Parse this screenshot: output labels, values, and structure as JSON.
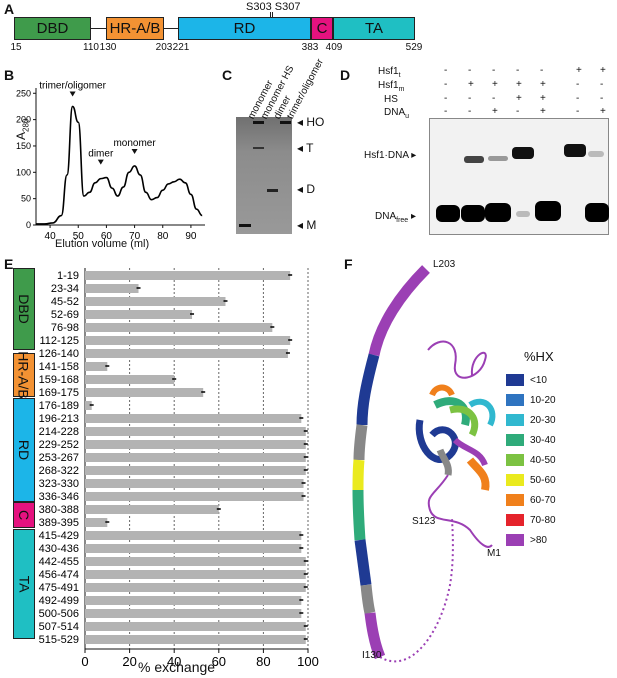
{
  "panels": {
    "A": "A",
    "B": "B",
    "C": "C",
    "D": "D",
    "E": "E",
    "F": "F"
  },
  "panelA": {
    "phospho_sites": "S303 S307",
    "domains": [
      {
        "name": "DBD",
        "color": "#3f9b4b"
      },
      {
        "name": "HR-A/B",
        "color": "#f39233"
      },
      {
        "name": "RD",
        "color": "#1cb5e8"
      },
      {
        "name": "C",
        "color": "#e5127f"
      },
      {
        "name": "TA",
        "color": "#1fbfc3"
      }
    ],
    "positions": [
      "15",
      "110",
      "130",
      "203",
      "221",
      "383",
      "409",
      "529"
    ]
  },
  "panelB": {
    "ylabel": "A",
    "ylabel_sub": "280",
    "xlabel": "Elution volume (ml)",
    "xticks": [
      "40",
      "50",
      "60",
      "70",
      "80",
      "90"
    ],
    "yticks": [
      "0",
      "50",
      "100",
      "150",
      "200",
      "250"
    ],
    "annotations": {
      "trimer": "trimer/oligomer",
      "dimer": "dimer",
      "monomer": "monomer"
    }
  },
  "panelC": {
    "lanes": [
      "monomer",
      "monomer HS",
      "dimer",
      "trimer/oligomer"
    ],
    "markers": [
      "HO",
      "T",
      "D",
      "M"
    ]
  },
  "panelD": {
    "rows": [
      {
        "label": "Hsf1",
        "sub": "t",
        "values": [
          "-",
          "-",
          "-",
          "-",
          "-",
          "+",
          "+"
        ]
      },
      {
        "label": "Hsf1",
        "sub": "m",
        "values": [
          "-",
          "+",
          "+",
          "+",
          "+",
          "-",
          "-"
        ]
      },
      {
        "label": "HS",
        "sub": "",
        "values": [
          "-",
          "-",
          "-",
          "+",
          "+",
          "-",
          "-"
        ]
      },
      {
        "label": "DNA",
        "sub": "u",
        "values": [
          "-",
          "-",
          "+",
          "-",
          "+",
          "-",
          "+"
        ]
      }
    ],
    "complex_label": "Hsf1·DNA",
    "free_label": "DNA",
    "free_sub": "free"
  },
  "panelE": {
    "xlabel": "% exchange",
    "xticks": [
      "0",
      "20",
      "40",
      "60",
      "80",
      "100"
    ],
    "groups": [
      {
        "name": "DBD",
        "color": "#3f9b4b"
      },
      {
        "name": "HR-A/B",
        "color": "#f39233"
      },
      {
        "name": "RD",
        "color": "#1cb5e8"
      },
      {
        "name": "C",
        "color": "#e5127f"
      },
      {
        "name": "TA",
        "color": "#1fbfc3"
      }
    ],
    "peptides": [
      {
        "label": "1-19",
        "value": 92
      },
      {
        "label": "23-34",
        "value": 24
      },
      {
        "label": "45-52",
        "value": 63
      },
      {
        "label": "52-69",
        "value": 48
      },
      {
        "label": "76-98",
        "value": 84
      },
      {
        "label": "112-125",
        "value": 92
      },
      {
        "label": "126-140",
        "value": 91
      },
      {
        "label": "141-158",
        "value": 10
      },
      {
        "label": "159-168",
        "value": 40
      },
      {
        "label": "169-175",
        "value": 53
      },
      {
        "label": "176-189",
        "value": 3
      },
      {
        "label": "196-213",
        "value": 97
      },
      {
        "label": "214-228",
        "value": 99
      },
      {
        "label": "229-252",
        "value": 99
      },
      {
        "label": "253-267",
        "value": 99
      },
      {
        "label": "268-322",
        "value": 99
      },
      {
        "label": "323-330",
        "value": 98
      },
      {
        "label": "336-346",
        "value": 98
      },
      {
        "label": "380-388",
        "value": 60
      },
      {
        "label": "389-395",
        "value": 10
      },
      {
        "label": "415-429",
        "value": 97
      },
      {
        "label": "430-436",
        "value": 97
      },
      {
        "label": "442-455",
        "value": 99
      },
      {
        "label": "456-474",
        "value": 99
      },
      {
        "label": "475-491",
        "value": 99
      },
      {
        "label": "492-499",
        "value": 97
      },
      {
        "label": "500-506",
        "value": 97
      },
      {
        "label": "507-514",
        "value": 99
      },
      {
        "label": "515-529",
        "value": 99
      }
    ]
  },
  "panelF": {
    "labels": {
      "L203": "L203",
      "S123": "S123",
      "M1": "M1",
      "I130": "I130"
    },
    "legend_title": "%HX",
    "legend": [
      {
        "label": "<10",
        "color": "#1f3a93"
      },
      {
        "label": "10-20",
        "color": "#2f74c0"
      },
      {
        "label": "20-30",
        "color": "#31b8cf"
      },
      {
        "label": "30-40",
        "color": "#2fab7a"
      },
      {
        "label": "40-50",
        "color": "#7cc242"
      },
      {
        "label": "50-60",
        "color": "#eaea1e"
      },
      {
        "label": "60-70",
        "color": "#f0801c"
      },
      {
        "label": "70-80",
        "color": "#e5232b"
      },
      {
        "label": ">80",
        "color": "#9b3fb4"
      }
    ]
  },
  "chart_data": [
    {
      "type": "line",
      "title": "",
      "xlabel": "Elution volume (ml)",
      "ylabel": "A280",
      "xlim": [
        35,
        95
      ],
      "ylim": [
        0,
        260
      ],
      "series": [
        {
          "x": [
            35,
            38,
            41,
            44,
            46,
            48,
            50,
            52,
            54,
            56,
            58,
            60,
            62,
            64,
            66,
            68,
            70,
            72,
            74,
            76,
            78,
            80,
            82,
            84,
            86,
            88,
            90,
            92,
            94
          ],
          "y": [
            2,
            2,
            4,
            18,
            95,
            225,
            195,
            55,
            62,
            80,
            88,
            90,
            70,
            55,
            72,
            100,
            112,
            95,
            62,
            48,
            52,
            66,
            78,
            82,
            87,
            80,
            58,
            30,
            18
          ]
        }
      ],
      "annotations": [
        "trimer/oligomer",
        "dimer",
        "monomer"
      ]
    },
    {
      "type": "bar",
      "title": "",
      "xlabel": "% exchange",
      "xlim": [
        0,
        100
      ],
      "categories": [
        "1-19",
        "23-34",
        "45-52",
        "52-69",
        "76-98",
        "112-125",
        "126-140",
        "141-158",
        "159-168",
        "169-175",
        "176-189",
        "196-213",
        "214-228",
        "229-252",
        "253-267",
        "268-322",
        "323-330",
        "336-346",
        "380-388",
        "389-395",
        "415-429",
        "430-436",
        "442-455",
        "456-474",
        "475-491",
        "492-499",
        "500-506",
        "507-514",
        "515-529"
      ],
      "values": [
        92,
        24,
        63,
        48,
        84,
        92,
        91,
        10,
        40,
        53,
        3,
        97,
        99,
        99,
        99,
        99,
        98,
        98,
        60,
        10,
        97,
        97,
        99,
        99,
        99,
        97,
        97,
        99,
        99
      ]
    }
  ]
}
